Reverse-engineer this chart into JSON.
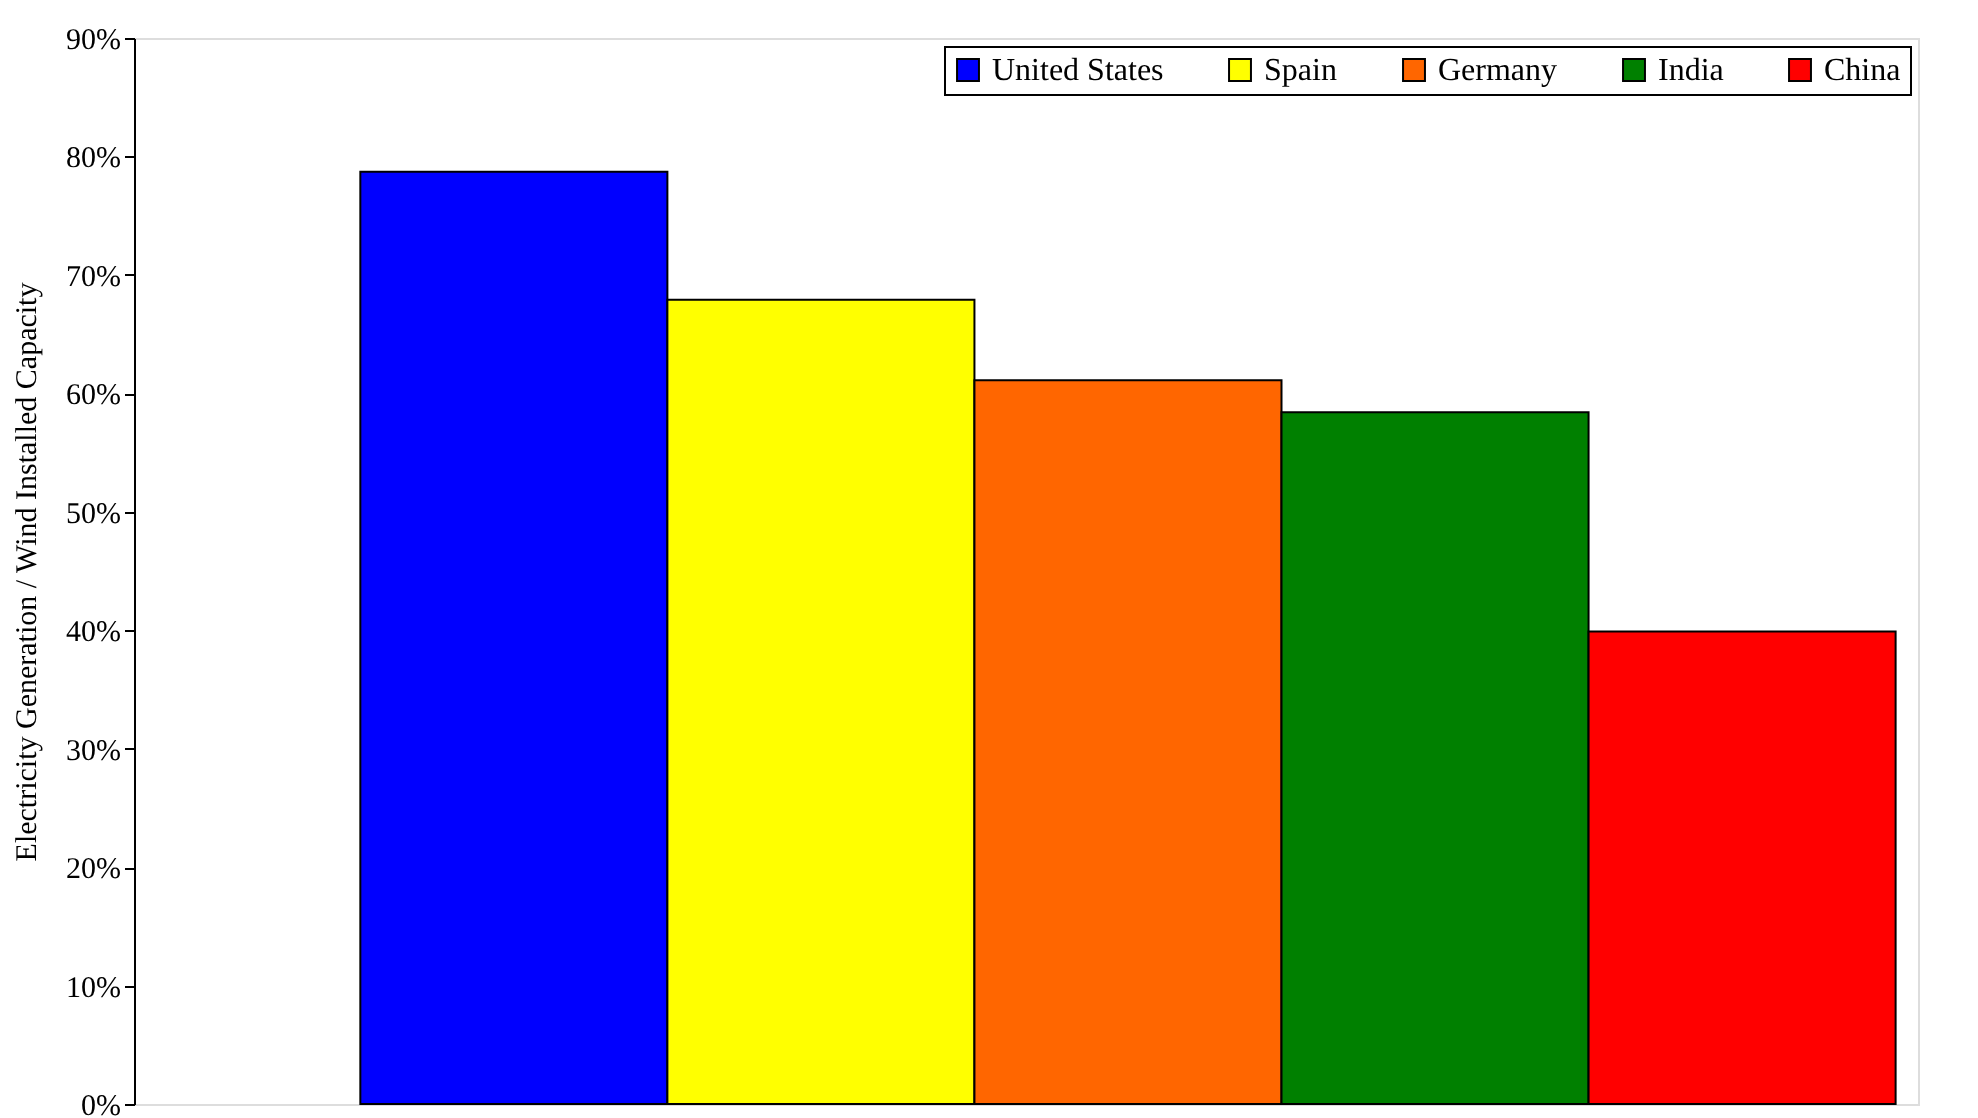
{
  "chart_data": {
    "type": "bar",
    "ylabel": "Electricity Generation / Wind Installed Capacity",
    "categories": [
      null
    ],
    "series": [
      {
        "name": "United States",
        "color": "#0000ff",
        "values": [
          78.7
        ]
      },
      {
        "name": "Spain",
        "color": "#ffff00",
        "values": [
          67.9
        ]
      },
      {
        "name": "Germany",
        "color": "#ff6600",
        "values": [
          61.1
        ]
      },
      {
        "name": "India",
        "color": "#008000",
        "values": [
          58.4
        ]
      },
      {
        "name": "China",
        "color": "#ff0000",
        "values": [
          39.9
        ]
      }
    ],
    "ylim": [
      0,
      90
    ],
    "yticks": [
      {
        "value": 0,
        "label": "0%"
      },
      {
        "value": 10,
        "label": "10%"
      },
      {
        "value": 20,
        "label": "20%"
      },
      {
        "value": 30,
        "label": "30%"
      },
      {
        "value": 40,
        "label": "40%"
      },
      {
        "value": 50,
        "label": "50%"
      },
      {
        "value": 60,
        "label": "60%"
      },
      {
        "value": 70,
        "label": "70%"
      },
      {
        "value": 80,
        "label": "80%"
      },
      {
        "value": 90,
        "label": "90%"
      }
    ],
    "grid": false,
    "legend": "top right"
  }
}
